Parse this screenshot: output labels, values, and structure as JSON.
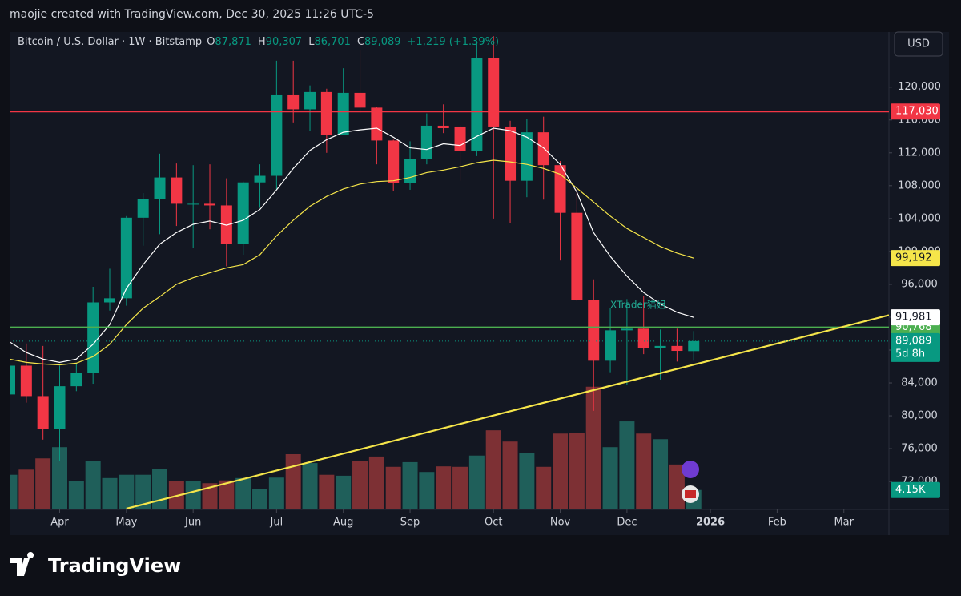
{
  "top_note": "maojie created with TradingView.com, Dec 30, 2025 11:26 UTC-5",
  "footer": "TradingView",
  "currency": "USD",
  "header": {
    "symbol": "Bitcoin / U.S. Dollar · 1W · Bitstamp",
    "ohlc": [
      {
        "label": "O",
        "value": "87,871"
      },
      {
        "label": "H",
        "value": "90,307"
      },
      {
        "label": "L",
        "value": "86,701"
      },
      {
        "label": "C",
        "value": "89,089"
      }
    ],
    "change": "+1,219 (+1.39%)"
  },
  "chart_data": {
    "type": "candlestick",
    "annotation": "XTrader猫姐",
    "up_color": "#089981",
    "down_color": "#f23645",
    "volume_up_color": "#1f5f5a",
    "volume_down_color": "#7d3034",
    "grid": false,
    "xlim": [
      0,
      52.7
    ],
    "xticks": [
      {
        "value": 3,
        "label": "Apr"
      },
      {
        "value": 7,
        "label": "May"
      },
      {
        "value": 11,
        "label": "Jun"
      },
      {
        "value": 16,
        "label": "Jul"
      },
      {
        "value": 20,
        "label": "Aug"
      },
      {
        "value": 24,
        "label": "Sep"
      },
      {
        "value": 29,
        "label": "Oct"
      },
      {
        "value": 33,
        "label": "Nov"
      },
      {
        "value": 37,
        "label": "Dec"
      },
      {
        "value": 42,
        "label": "2026"
      },
      {
        "value": 46,
        "label": "Feb"
      },
      {
        "value": 50,
        "label": "Mar"
      }
    ],
    "ylim": [
      68600,
      126700
    ],
    "yticks": [
      {
        "value": 72000,
        "label": "72,000"
      },
      {
        "value": 76000,
        "label": "76,000"
      },
      {
        "value": 80000,
        "label": "80,000"
      },
      {
        "value": 84000,
        "label": "84,000"
      },
      {
        "value": 88000,
        "label": "88,000"
      },
      {
        "value": 92000,
        "label": "92,000"
      },
      {
        "value": 96000,
        "label": "96,000"
      },
      {
        "value": 100000,
        "label": "100,000"
      },
      {
        "value": 104000,
        "label": "104,000"
      },
      {
        "value": 108000,
        "label": "108,000"
      },
      {
        "value": 112000,
        "label": "112,000"
      },
      {
        "value": 116000,
        "label": "116,000"
      },
      {
        "value": 120000,
        "label": "120,000"
      }
    ],
    "open": [
      82600,
      86100,
      82400,
      78400,
      83600,
      85200,
      93800,
      94300,
      104100,
      106400,
      109000,
      105700,
      105800,
      105600,
      100900,
      108400,
      109200,
      119100,
      117300,
      119400,
      114200,
      119300,
      117500,
      113500,
      108300,
      111200,
      115300,
      115200,
      112200,
      123500,
      115200,
      108600,
      114500,
      110500,
      104700,
      94100,
      86700,
      90400,
      90600,
      88200,
      88500,
      87871
    ],
    "high": [
      87500,
      88800,
      88500,
      86100,
      86400,
      95700,
      97900,
      104300,
      107100,
      111900,
      110700,
      110500,
      110600,
      108900,
      108500,
      110600,
      123200,
      123200,
      120200,
      119800,
      122300,
      124500,
      117600,
      113600,
      113400,
      116800,
      117900,
      115400,
      125600,
      126200,
      115900,
      116100,
      116400,
      111000,
      107500,
      96600,
      93100,
      94200,
      94600,
      90500,
      90600,
      90307
    ],
    "low": [
      81100,
      81600,
      77100,
      74500,
      83000,
      83900,
      92800,
      93400,
      100700,
      102100,
      103100,
      100400,
      102700,
      98200,
      99600,
      105300,
      107500,
      115700,
      114700,
      112000,
      114300,
      116800,
      110600,
      107300,
      107500,
      110600,
      114400,
      108600,
      111600,
      104000,
      103500,
      106600,
      106300,
      98900,
      94000,
      80600,
      85300,
      83800,
      87500,
      84400,
      86600,
      86701
    ],
    "close": [
      86100,
      82400,
      78400,
      83600,
      85200,
      93800,
      94300,
      104100,
      106400,
      109000,
      105800,
      105800,
      105600,
      100900,
      108400,
      109200,
      119100,
      117300,
      119400,
      114200,
      119300,
      117500,
      113500,
      108300,
      111200,
      115300,
      115000,
      112200,
      123500,
      115200,
      108600,
      114500,
      110500,
      104700,
      94100,
      86700,
      90400,
      90600,
      88200,
      88500,
      87900,
      89089
    ],
    "volume_lim": [
      0,
      101900
    ],
    "volume": [
      7400,
      8500,
      10900,
      13300,
      6000,
      10300,
      6700,
      7400,
      7400,
      8700,
      6000,
      6000,
      5600,
      6200,
      6700,
      4400,
      6800,
      11800,
      9900,
      7400,
      7200,
      10400,
      11300,
      9100,
      10100,
      8000,
      9200,
      9100,
      11500,
      16900,
      14500,
      12100,
      9100,
      16200,
      16400,
      26200,
      13300,
      18800,
      16200,
      15000,
      9600,
      4150
    ],
    "volume_value_labels": {
      "41": "4.15K"
    },
    "ma_lines": [
      {
        "color": "#ffffff",
        "last_label": "91,981",
        "values": [
          89000,
          87700,
          86900,
          86500,
          86900,
          88700,
          91100,
          95500,
          98400,
          100900,
          102300,
          103300,
          103700,
          103200,
          103800,
          105100,
          107500,
          110100,
          112300,
          113600,
          114500,
          114800,
          115000,
          113900,
          112600,
          112400,
          113100,
          112900,
          114000,
          115000,
          114700,
          113900,
          112600,
          110600,
          107200,
          102300,
          99400,
          97000,
          95000,
          93600,
          92600,
          91981
        ]
      },
      {
        "color": "#f5e54a",
        "last_label": "99,192",
        "values": [
          86900,
          86500,
          86300,
          86200,
          86400,
          87200,
          88700,
          91100,
          93100,
          94500,
          96000,
          96800,
          97400,
          98000,
          98400,
          99600,
          101900,
          103800,
          105500,
          106700,
          107600,
          108200,
          108500,
          108600,
          109000,
          109600,
          109900,
          110300,
          110800,
          111100,
          110900,
          110600,
          110100,
          109400,
          107700,
          106000,
          104300,
          102800,
          101700,
          100600,
          99800,
          99192
        ]
      }
    ],
    "hlines": [
      {
        "value": 117030,
        "label": "117,030",
        "color": "#f23645",
        "text_color": "#ffffff"
      },
      {
        "value": 90768,
        "label": "90,768",
        "color": "#4caf50",
        "text_color": "#ffffff"
      }
    ],
    "last_price": {
      "value": 89089,
      "label": "89,089",
      "countdown": "5d 8h",
      "color": "#089981"
    },
    "trendline": {
      "x": [
        7,
        52.7
      ],
      "y": [
        68700,
        92250
      ],
      "color": "#f5e54a"
    }
  }
}
